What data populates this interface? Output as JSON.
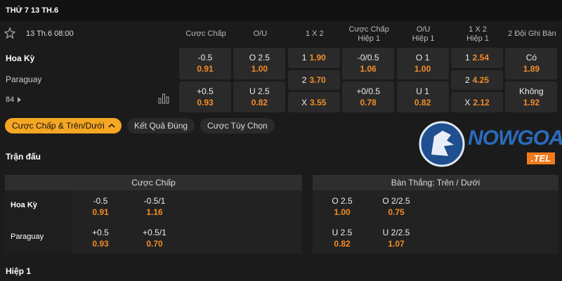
{
  "header": {
    "date": "THỨ 7 13 TH.6"
  },
  "match": {
    "time": "13 Th.6 08:00",
    "home": "Hoa Kỳ",
    "away": "Paraguay",
    "more": "84"
  },
  "odds_table": {
    "headers": [
      [
        "Cược Chấp"
      ],
      [
        "O/U"
      ],
      [
        "1 X 2"
      ],
      [
        "Cược Chấp",
        "Hiệp 1"
      ],
      [
        "O/U",
        "Hiệp 1"
      ],
      [
        "1 X 2",
        "Hiệp 1"
      ],
      [
        "2 Đội Ghi Bàn"
      ]
    ],
    "columns": [
      [
        {
          "label": "-0.5",
          "odds": "0.91"
        },
        {
          "label": "+0.5",
          "odds": "0.93"
        }
      ],
      [
        {
          "label": "O 2.5",
          "odds": "1.00"
        },
        {
          "label": "U 2.5",
          "odds": "0.82"
        }
      ],
      [
        {
          "label": "1",
          "odds": "1.90"
        },
        {
          "label": "2",
          "odds": "3.70"
        },
        {
          "label": "X",
          "odds": "3.55"
        }
      ],
      [
        {
          "label": "-0/0.5",
          "odds": "1.06"
        },
        {
          "label": "+0/0.5",
          "odds": "0.78"
        }
      ],
      [
        {
          "label": "O 1",
          "odds": "1.00"
        },
        {
          "label": "U 1",
          "odds": "0.82"
        }
      ],
      [
        {
          "label": "1",
          "odds": "2.54"
        },
        {
          "label": "2",
          "odds": "4.25"
        },
        {
          "label": "X",
          "odds": "2.12"
        }
      ],
      [
        {
          "label": "Có",
          "odds": "1.89"
        },
        {
          "label": "Không",
          "odds": "1.92"
        }
      ]
    ]
  },
  "tabs": [
    "Cược Chấp & Trên/Dưới",
    "Kết Quả Đúng",
    "Cược Tùy Chọn"
  ],
  "logo": {
    "name": "NOWGOAL",
    "domain": ".TEL"
  },
  "section": "Trận đấu",
  "handicap_panel": {
    "title": "Cược Chấp",
    "rows": [
      {
        "team": "Hoa Kỳ",
        "cells": [
          {
            "label": "-0.5",
            "odds": "0.91"
          },
          {
            "label": "-0.5/1",
            "odds": "1.16"
          }
        ]
      },
      {
        "team": "Paraguay",
        "cells": [
          {
            "label": "+0.5",
            "odds": "0.93"
          },
          {
            "label": "+0.5/1",
            "odds": "0.70"
          }
        ]
      }
    ]
  },
  "totals_panel": {
    "title": "Bàn Thắng: Trên / Dưới",
    "rows": [
      {
        "cells": [
          {
            "label": "O 2.5",
            "odds": "1.00"
          },
          {
            "label": "O 2/2.5",
            "odds": "0.75"
          }
        ]
      },
      {
        "cells": [
          {
            "label": "U 2.5",
            "odds": "0.82"
          },
          {
            "label": "U 2/2.5",
            "odds": "1.07"
          }
        ]
      }
    ]
  },
  "footer": "Hiệp 1"
}
